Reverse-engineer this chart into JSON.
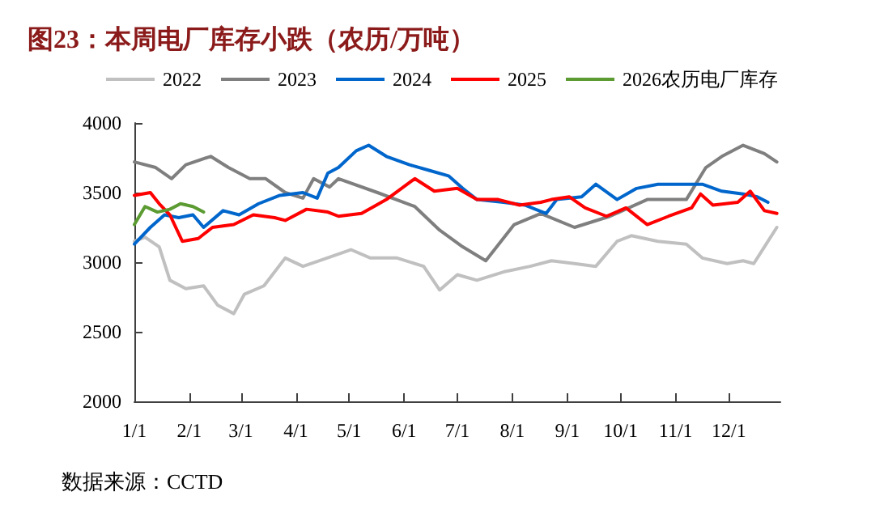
{
  "chart_data": {
    "type": "line",
    "title": "图23：本周电厂库存小跌（农历/万吨）",
    "annotations": [
      "数据来源：CCTD"
    ],
    "xlim": [
      "--01-01",
      "--12-30"
    ],
    "xticks": [
      {
        "value": "--01-01",
        "label": "1/1"
      },
      {
        "value": "--02-01",
        "label": "2/1"
      },
      {
        "value": "--03-01",
        "label": "3/1"
      },
      {
        "value": "--04-01",
        "label": "4/1"
      },
      {
        "value": "--05-01",
        "label": "5/1"
      },
      {
        "value": "--06-01",
        "label": "6/1"
      },
      {
        "value": "--07-01",
        "label": "7/1"
      },
      {
        "value": "--08-01",
        "label": "8/1"
      },
      {
        "value": "--09-01",
        "label": "9/1"
      },
      {
        "value": "--10-01",
        "label": "10/1"
      },
      {
        "value": "--11-01",
        "label": "11/1"
      },
      {
        "value": "--12-01",
        "label": "12/1"
      }
    ],
    "ylim": [
      2000,
      4000
    ],
    "yticks": [
      2000,
      2500,
      3000,
      3500,
      4000
    ],
    "grid": false,
    "legend": "top",
    "marker": "none",
    "line_style": "solid",
    "series": [
      {
        "name": "2022",
        "color": "#c0c0c0",
        "x": [
          "--01-01",
          "--01-07",
          "--01-15",
          "--01-21",
          "--01-30",
          "--02-09",
          "--02-17",
          "--02-26",
          "--03-03",
          "--03-14",
          "--03-26",
          "--04-05",
          "--04-14",
          "--05-02",
          "--05-13",
          "--05-28",
          "--06-12",
          "--06-21",
          "--07-01",
          "--07-12",
          "--07-27",
          "--08-11",
          "--08-23",
          "--09-05",
          "--09-17",
          "--09-29",
          "--10-07",
          "--10-22",
          "--11-07",
          "--11-16",
          "--11-30",
          "--12-09",
          "--12-15",
          "--12-21",
          "--12-28"
        ],
        "values": [
          3150,
          3180,
          3110,
          2870,
          2810,
          2830,
          2690,
          2630,
          2770,
          2830,
          3030,
          2970,
          3010,
          3090,
          3030,
          3030,
          2970,
          2800,
          2910,
          2870,
          2930,
          2970,
          3010,
          2990,
          2970,
          3150,
          3190,
          3150,
          3130,
          3030,
          2990,
          3010,
          2990,
          3110,
          3250
        ]
      },
      {
        "name": "2023",
        "color": "#7f7f7f",
        "x": [
          "--01-01",
          "--01-13",
          "--01-22",
          "--01-30",
          "--02-13",
          "--02-23",
          "--03-06",
          "--03-15",
          "--03-26",
          "--04-05",
          "--04-11",
          "--04-20",
          "--04-25",
          "--05-17",
          "--06-07",
          "--06-21",
          "--07-04",
          "--07-17",
          "--08-02",
          "--08-17",
          "--09-05",
          "--09-25",
          "--10-16",
          "--11-07",
          "--11-18",
          "--11-27",
          "--12-09",
          "--12-21",
          "--12-28"
        ],
        "values": [
          3720,
          3680,
          3600,
          3700,
          3760,
          3680,
          3600,
          3600,
          3500,
          3460,
          3600,
          3540,
          3600,
          3500,
          3400,
          3230,
          3110,
          3010,
          3270,
          3350,
          3250,
          3330,
          3450,
          3450,
          3680,
          3760,
          3840,
          3780,
          3720
        ]
      },
      {
        "name": "2024",
        "color": "#0066cc",
        "x": [
          "--01-01",
          "--01-10",
          "--01-18",
          "--01-26",
          "--02-03",
          "--02-09",
          "--02-20",
          "--02-29",
          "--03-11",
          "--03-23",
          "--04-05",
          "--04-13",
          "--04-19",
          "--04-25",
          "--05-05",
          "--05-12",
          "--05-22",
          "--06-04",
          "--06-15",
          "--06-26",
          "--07-04",
          "--07-12",
          "--07-27",
          "--08-08",
          "--08-20",
          "--08-26",
          "--09-09",
          "--09-17",
          "--09-29",
          "--10-10",
          "--10-22",
          "--11-04",
          "--11-16",
          "--11-27",
          "--12-09",
          "--12-17",
          "--12-23"
        ],
        "values": [
          3130,
          3250,
          3340,
          3320,
          3340,
          3250,
          3370,
          3340,
          3420,
          3480,
          3500,
          3460,
          3640,
          3680,
          3800,
          3840,
          3760,
          3700,
          3660,
          3620,
          3530,
          3450,
          3430,
          3410,
          3350,
          3450,
          3470,
          3560,
          3450,
          3530,
          3560,
          3560,
          3560,
          3510,
          3490,
          3470,
          3430
        ]
      },
      {
        "name": "2025",
        "color": "#ff0000",
        "x": [
          "--01-01",
          "--01-10",
          "--01-15",
          "--01-21",
          "--01-28",
          "--02-06",
          "--02-14",
          "--02-26",
          "--03-08",
          "--03-20",
          "--03-26",
          "--04-07",
          "--04-19",
          "--04-25",
          "--05-08",
          "--05-22",
          "--06-07",
          "--06-18",
          "--07-01",
          "--07-12",
          "--07-24",
          "--08-05",
          "--08-17",
          "--08-23",
          "--09-02",
          "--09-11",
          "--09-23",
          "--10-04",
          "--10-16",
          "--10-28",
          "--11-10",
          "--11-15",
          "--11-22",
          "--12-06",
          "--12-13",
          "--12-21",
          "--12-28"
        ],
        "values": [
          3480,
          3500,
          3420,
          3340,
          3150,
          3170,
          3250,
          3270,
          3340,
          3320,
          3300,
          3380,
          3360,
          3330,
          3350,
          3450,
          3600,
          3510,
          3530,
          3450,
          3450,
          3410,
          3430,
          3450,
          3470,
          3390,
          3330,
          3390,
          3270,
          3330,
          3390,
          3490,
          3410,
          3430,
          3510,
          3370,
          3350
        ]
      },
      {
        "name": "2026农历电厂库存",
        "color": "#5b9b32",
        "x": [
          "--01-01",
          "--01-07",
          "--01-14",
          "--01-21",
          "--01-27",
          "--02-03",
          "--02-09"
        ],
        "values": [
          3270,
          3400,
          3360,
          3380,
          3420,
          3400,
          3360
        ]
      }
    ]
  }
}
